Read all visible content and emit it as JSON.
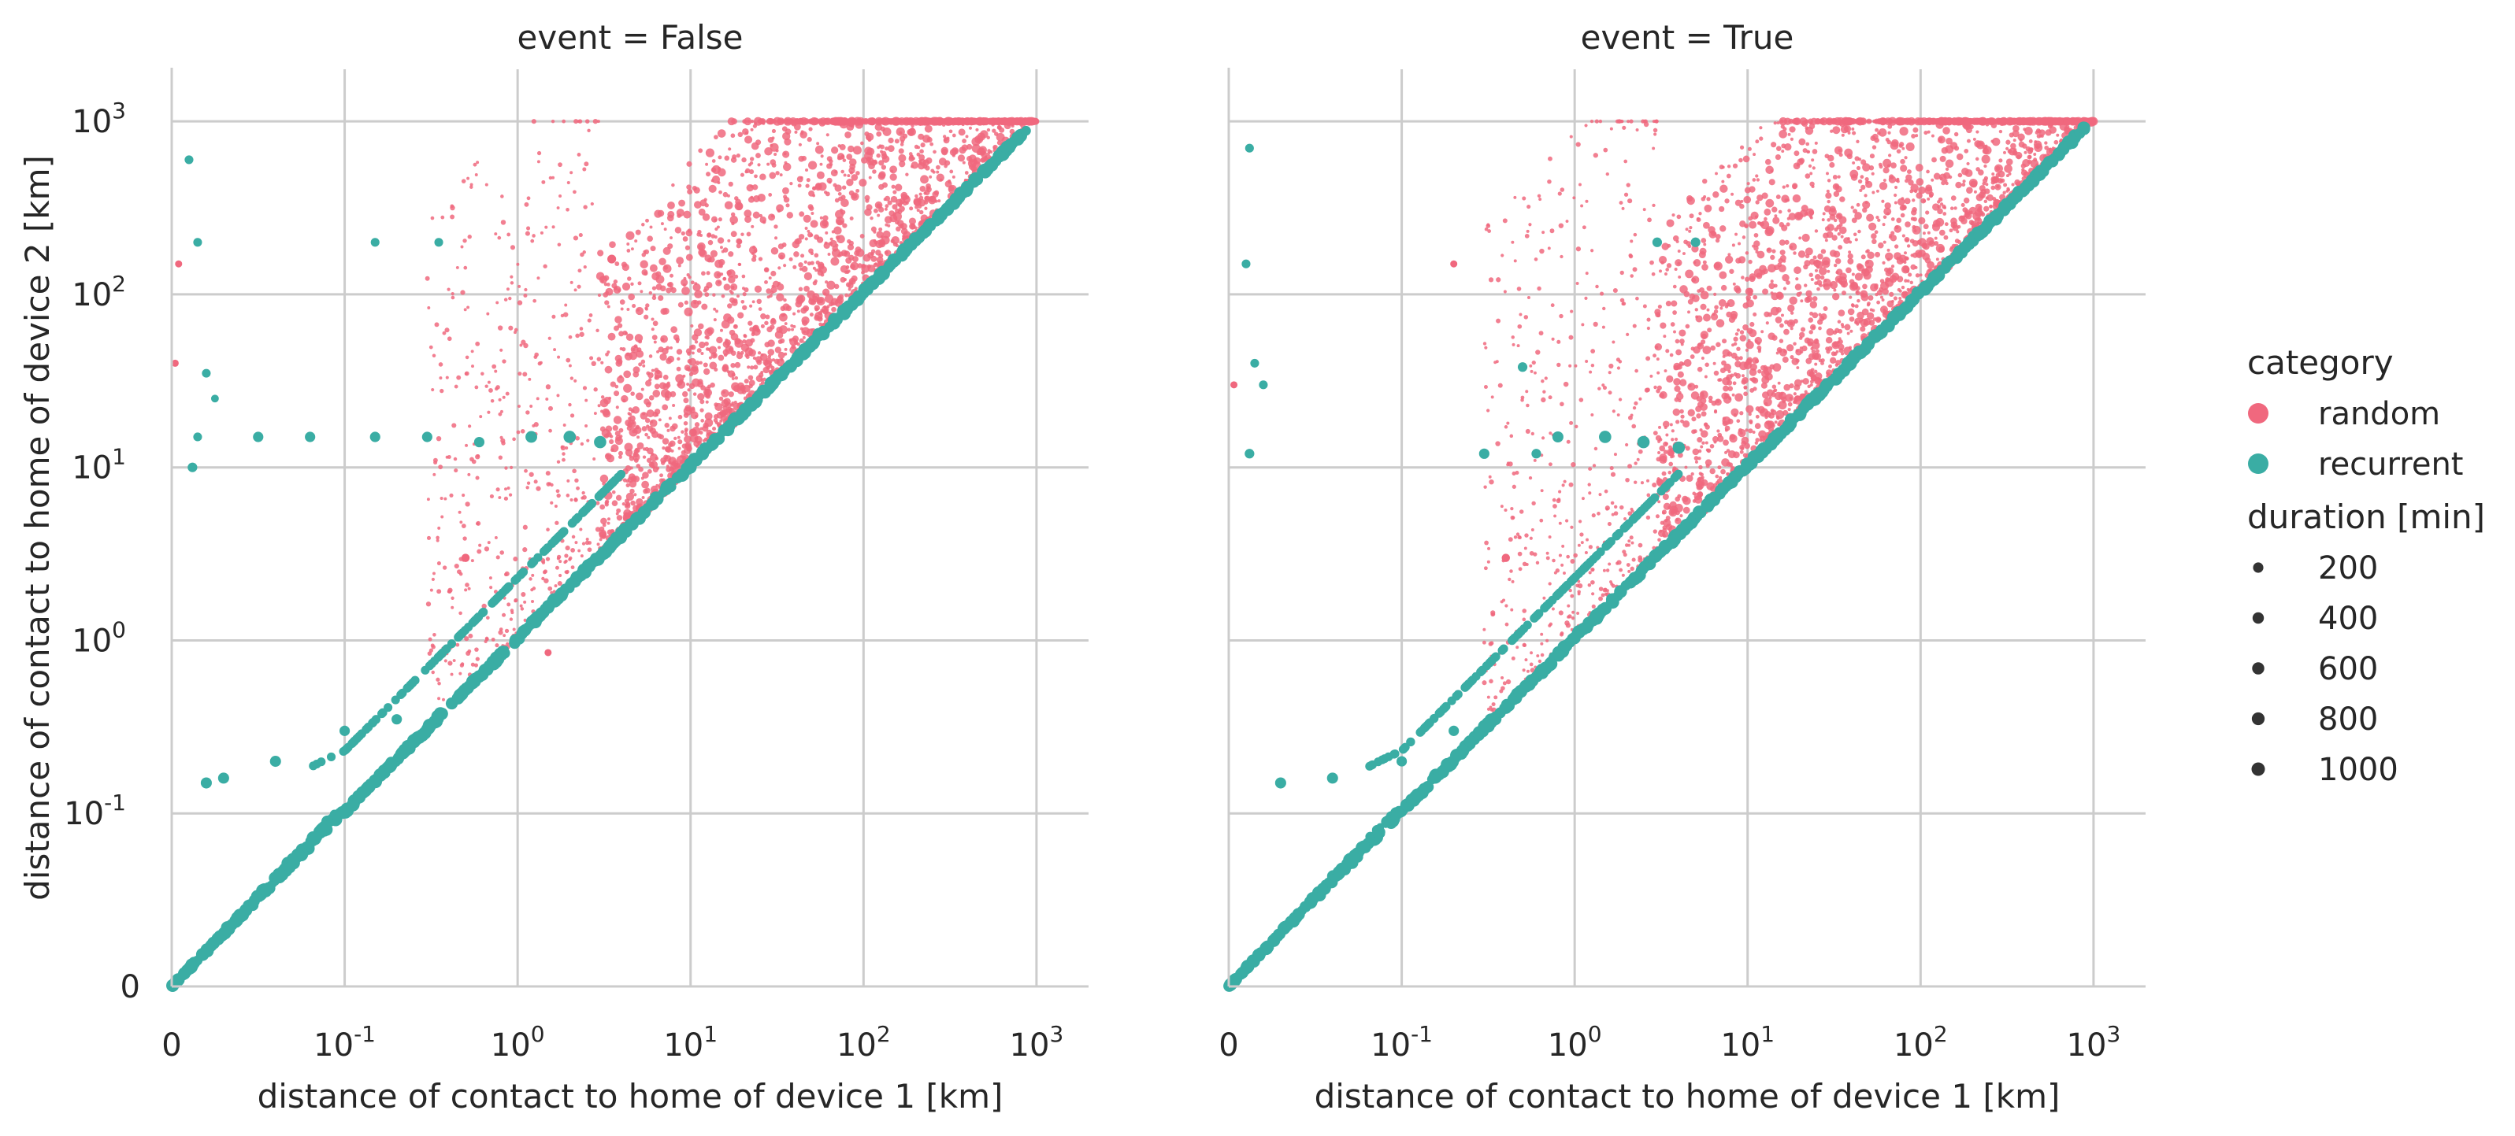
{
  "figure": {
    "colors": {
      "random": "#f0687e",
      "recurrent": "#3aada4",
      "grid": "#cccccc",
      "spine": "#cccccc",
      "text": "#262626"
    }
  },
  "chart_data": [
    {
      "type": "scatter",
      "title": "event = False",
      "xlabel": "distance of contact to home of device 1 [km]",
      "ylabel": "distance of contact to home of device 2 [km]",
      "xscale": "symlog",
      "yscale": "symlog",
      "linthresh": 0.1,
      "xlim": [
        0,
        2000
      ],
      "ylim": [
        0,
        2000
      ],
      "xticks": [
        0,
        0.1,
        1,
        10,
        100,
        1000
      ],
      "xtick_labels": [
        "0",
        "10^-1",
        "10^0",
        "10^1",
        "10^2",
        "10^3"
      ],
      "yticks": [
        0,
        0.1,
        1,
        10,
        100,
        1000
      ],
      "ytick_labels": [
        "0",
        "10^-1",
        "10^0",
        "10^1",
        "10^2",
        "10^3"
      ],
      "grid": true,
      "series": [
        {
          "name": "random",
          "color": "#f0687e",
          "clusters": [
            {
              "x": [
                3,
                1000
              ],
              "y_over_x": [
                1,
                60
              ],
              "density": "very high",
              "duration_min": [
                5,
                600
              ]
            },
            {
              "x": [
                0.3,
                3
              ],
              "y_over_x": [
                1,
                1000
              ],
              "density": "low",
              "duration_min": [
                5,
                100
              ]
            }
          ],
          "points": [
            {
              "x": 0.5,
              "y": 3,
              "duration": 250
            },
            {
              "x": 1.5,
              "y": 0.85,
              "duration": 150
            },
            {
              "x": 0.002,
              "y": 40,
              "duration": 150
            },
            {
              "x": 0.004,
              "y": 150,
              "duration": 150
            },
            {
              "x": 3.5,
              "y": 160,
              "duration": 300
            },
            {
              "x": 2.5,
              "y": 2.6,
              "duration": 200
            }
          ]
        },
        {
          "name": "recurrent",
          "color": "#3aada4",
          "diagonal": {
            "x": [
              0,
              900
            ],
            "y_equals_x": true,
            "duration_min": [
              100,
              1000
            ]
          },
          "points": [
            {
              "x": 0.015,
              "y": 15,
              "duration": 300
            },
            {
              "x": 0.02,
              "y": 35,
              "duration": 300
            },
            {
              "x": 0.012,
              "y": 10,
              "duration": 400
            },
            {
              "x": 0.025,
              "y": 25,
              "duration": 200
            },
            {
              "x": 0.01,
              "y": 600,
              "duration": 300
            },
            {
              "x": 0.015,
              "y": 200,
              "duration": 300
            },
            {
              "x": 0.05,
              "y": 15,
              "duration": 500
            },
            {
              "x": 0.08,
              "y": 15,
              "duration": 500
            },
            {
              "x": 0.15,
              "y": 15,
              "duration": 500
            },
            {
              "x": 0.3,
              "y": 15,
              "duration": 500
            },
            {
              "x": 0.6,
              "y": 14,
              "duration": 500
            },
            {
              "x": 1.2,
              "y": 15,
              "duration": 700
            },
            {
              "x": 2,
              "y": 15,
              "duration": 800
            },
            {
              "x": 3,
              "y": 14,
              "duration": 800
            },
            {
              "x": 0.15,
              "y": 200,
              "duration": 300
            },
            {
              "x": 0.35,
              "y": 200,
              "duration": 300
            },
            {
              "x": 0.02,
              "y": 0.15,
              "duration": 600
            },
            {
              "x": 0.03,
              "y": 0.16,
              "duration": 600
            },
            {
              "x": 0.06,
              "y": 0.2,
              "duration": 600
            },
            {
              "x": 0.1,
              "y": 0.3,
              "duration": 500
            },
            {
              "x": 0.2,
              "y": 0.35,
              "duration": 500
            }
          ]
        }
      ]
    },
    {
      "type": "scatter",
      "title": "event = True",
      "xlabel": "distance of contact to home of device 1 [km]",
      "ylabel": "",
      "xscale": "symlog",
      "yscale": "symlog",
      "linthresh": 0.1,
      "xlim": [
        0,
        2000
      ],
      "ylim": [
        0,
        2000
      ],
      "xticks": [
        0,
        0.1,
        1,
        10,
        100,
        1000
      ],
      "xtick_labels": [
        "0",
        "10^-1",
        "10^0",
        "10^1",
        "10^2",
        "10^3"
      ],
      "grid": true,
      "series": [
        {
          "name": "random",
          "color": "#f0687e",
          "clusters": [
            {
              "x": [
                3,
                1000
              ],
              "y_over_x": [
                1,
                80
              ],
              "density": "very high",
              "duration_min": [
                5,
                600
              ]
            },
            {
              "x": [
                0.3,
                3
              ],
              "y_over_x": [
                1,
                1000
              ],
              "density": "low",
              "duration_min": [
                5,
                100
              ]
            }
          ],
          "points": [
            {
              "x": 0.4,
              "y": 3,
              "duration": 250
            },
            {
              "x": 0.2,
              "y": 150,
              "duration": 150
            },
            {
              "x": 0.003,
              "y": 30,
              "duration": 150
            }
          ]
        },
        {
          "name": "recurrent",
          "color": "#3aada4",
          "diagonal": {
            "x": [
              0,
              900
            ],
            "y_equals_x": true,
            "duration_min": [
              100,
              1000
            ]
          },
          "points": [
            {
              "x": 0.012,
              "y": 12,
              "duration": 400
            },
            {
              "x": 0.02,
              "y": 30,
              "duration": 300
            },
            {
              "x": 0.015,
              "y": 40,
              "duration": 300
            },
            {
              "x": 0.01,
              "y": 150,
              "duration": 300
            },
            {
              "x": 0.012,
              "y": 700,
              "duration": 300
            },
            {
              "x": 0.3,
              "y": 12,
              "duration": 500
            },
            {
              "x": 0.8,
              "y": 15,
              "duration": 600
            },
            {
              "x": 1.5,
              "y": 15,
              "duration": 800
            },
            {
              "x": 2.5,
              "y": 14,
              "duration": 800
            },
            {
              "x": 4,
              "y": 13,
              "duration": 800
            },
            {
              "x": 0.6,
              "y": 12,
              "duration": 400
            },
            {
              "x": 0.5,
              "y": 38,
              "duration": 400
            },
            {
              "x": 3,
              "y": 200,
              "duration": 400
            },
            {
              "x": 5,
              "y": 200,
              "duration": 400
            },
            {
              "x": 0.03,
              "y": 0.15,
              "duration": 600
            },
            {
              "x": 0.06,
              "y": 0.16,
              "duration": 600
            },
            {
              "x": 0.1,
              "y": 0.2,
              "duration": 500
            },
            {
              "x": 0.2,
              "y": 0.3,
              "duration": 500
            }
          ]
        }
      ]
    }
  ],
  "legend": {
    "placement": "right",
    "hue_title": "category",
    "hue_items": [
      {
        "label": "random",
        "color": "#f0687e"
      },
      {
        "label": "recurrent",
        "color": "#3aada4"
      }
    ],
    "size_title": "duration [min]",
    "size_items": [
      {
        "label": "200",
        "value": 200
      },
      {
        "label": "400",
        "value": 400
      },
      {
        "label": "600",
        "value": 600
      },
      {
        "label": "800",
        "value": 800
      },
      {
        "label": "1000",
        "value": 1000
      }
    ]
  }
}
